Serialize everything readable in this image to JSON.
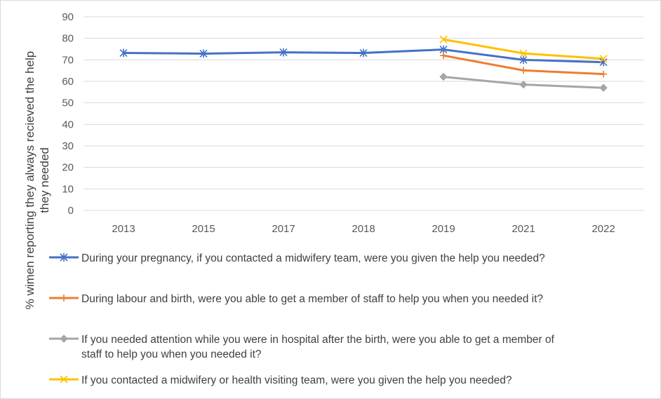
{
  "chart_data": {
    "type": "line",
    "title": "",
    "xlabel": "",
    "ylabel": "% wimen reporting they always recieved the help they needed",
    "ylabel_lines": [
      "% wimen reporting they always recieved the help",
      "they needed"
    ],
    "ylim": [
      0,
      90
    ],
    "yticks": [
      0,
      10,
      20,
      30,
      40,
      50,
      60,
      70,
      80,
      90
    ],
    "categories": [
      "2013",
      "2015",
      "2017",
      "2018",
      "2019",
      "2021",
      "2022"
    ],
    "grid": true,
    "legend_position": "bottom",
    "series": [
      {
        "name": "During your pregnancy, if you contacted a midwifery team, were you given the help you needed?",
        "name_lines": [
          "During your pregnancy, if you contacted a midwifery team, were you given the help you needed?"
        ],
        "color": "#4472c4",
        "marker": "asterisk",
        "values": [
          73.2,
          72.9,
          73.5,
          73.2,
          74.8,
          70.0,
          68.9
        ]
      },
      {
        "name": "During labour and birth, were you able to get a member of staff to help you when you needed it?",
        "name_lines": [
          "During labour and birth, were you able to get a member of staff to help you when you needed it?"
        ],
        "color": "#ed7d31",
        "marker": "plus",
        "values": [
          null,
          null,
          null,
          null,
          72.0,
          65.1,
          63.4
        ]
      },
      {
        "name": "If you needed attention while you were in hospital after the birth, were you able to get a member of staff to help you when you needed it?",
        "name_lines": [
          "If you needed attention while you were in hospital after the birth, were you able to get a member of",
          "staff to help you when you needed it?"
        ],
        "color": "#a5a5a5",
        "marker": "diamond",
        "values": [
          null,
          null,
          null,
          null,
          62.1,
          58.5,
          57.0
        ]
      },
      {
        "name": "If you contacted a midwifery or health visiting team, were you given the help you needed?",
        "name_lines": [
          "If you contacted a midwifery or health visiting team, were you given the help you needed?"
        ],
        "color": "#ffc000",
        "marker": "cross",
        "values": [
          null,
          null,
          null,
          null,
          79.5,
          73.0,
          70.5
        ]
      }
    ]
  }
}
